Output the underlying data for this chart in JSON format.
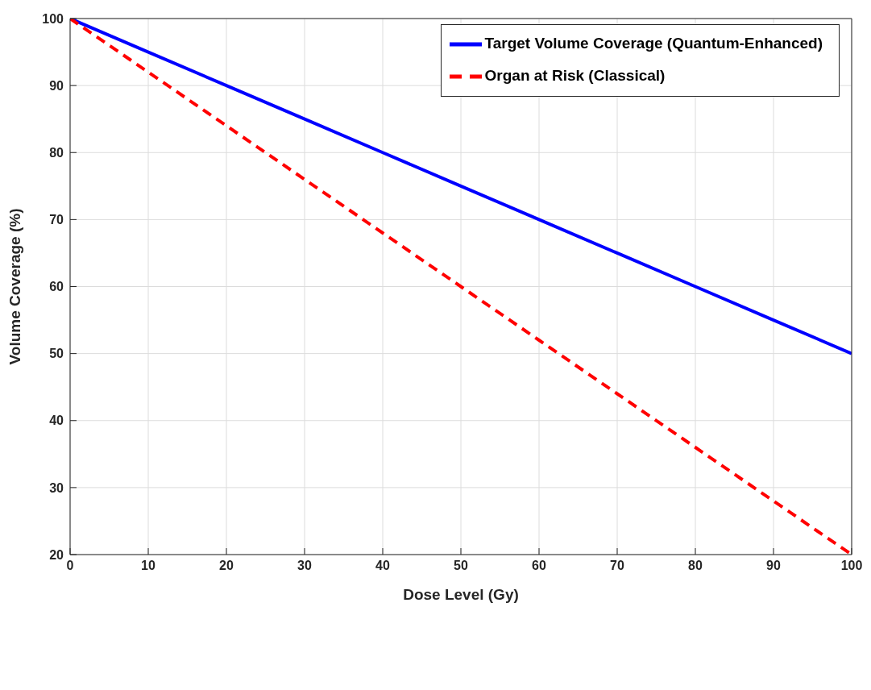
{
  "chart_data": {
    "type": "line",
    "xlabel": "Dose Level (Gy)",
    "ylabel": "Volume Coverage (%)",
    "x": [
      0,
      10,
      20,
      30,
      40,
      50,
      60,
      70,
      80,
      90,
      100
    ],
    "series": [
      {
        "name": "Target Volume Coverage (Quantum-Enhanced)",
        "color": "#0000ff",
        "line_style": "solid",
        "values": [
          100,
          95,
          90,
          85,
          80,
          75,
          70,
          65,
          60,
          55,
          50
        ]
      },
      {
        "name": "Organ at Risk (Classical)",
        "color": "#ff0000",
        "line_style": "dashed",
        "values": [
          100,
          92,
          84,
          76,
          68,
          60,
          52,
          44,
          36,
          28,
          20
        ]
      }
    ],
    "xlim": [
      0,
      100
    ],
    "xticks": [
      0,
      10,
      20,
      30,
      40,
      50,
      60,
      70,
      80,
      90,
      100
    ],
    "ylim": [
      20,
      100
    ],
    "yticks": [
      20,
      30,
      40,
      50,
      60,
      70,
      80,
      90,
      100
    ],
    "grid": true,
    "legend": "top right",
    "marker": "none"
  }
}
